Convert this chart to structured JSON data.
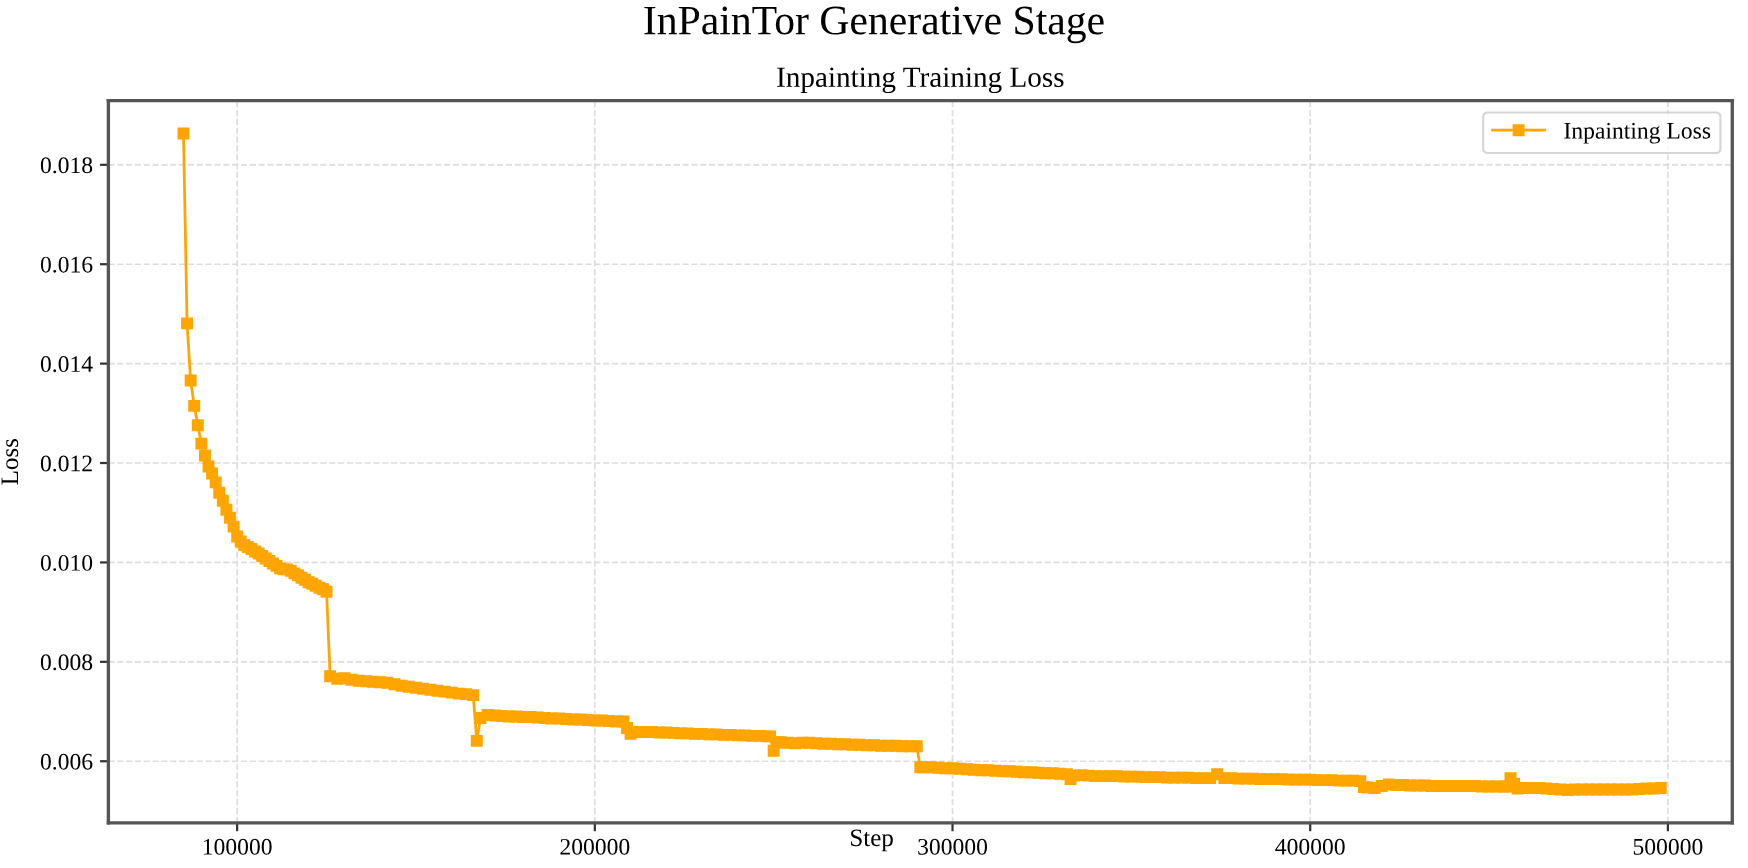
{
  "chart_data": {
    "type": "line",
    "title": "InPainTor Generative Stage",
    "subtitle": "Inpainting Training Loss",
    "xlabel": "Step",
    "ylabel": "Loss",
    "series": [
      {
        "name": "Inpainting Loss",
        "color": "#ffa500",
        "x": [
          85000,
          86000,
          87000,
          88000,
          89000,
          90000,
          91000,
          92000,
          93000,
          94000,
          95000,
          96000,
          97000,
          98000,
          99000,
          100000,
          101000,
          102000,
          103000,
          104000,
          105000,
          106000,
          107000,
          108000,
          109000,
          110000,
          111000,
          112000,
          113000,
          114000,
          115000,
          116000,
          117000,
          118000,
          119000,
          120000,
          121000,
          122000,
          123000,
          124000,
          125000,
          126000,
          128000,
          130000,
          132000,
          134000,
          136000,
          138000,
          140000,
          142000,
          144000,
          146000,
          148000,
          150000,
          152000,
          154000,
          156000,
          158000,
          160000,
          162000,
          164000,
          166000,
          167000,
          168000,
          170000,
          172000,
          174000,
          176000,
          178000,
          180000,
          182000,
          184000,
          186000,
          188000,
          190000,
          192000,
          194000,
          196000,
          198000,
          200000,
          202000,
          204000,
          206000,
          208000,
          209000,
          210000,
          212000,
          214000,
          216000,
          218000,
          220000,
          222000,
          224000,
          226000,
          228000,
          230000,
          232000,
          234000,
          236000,
          238000,
          240000,
          242000,
          244000,
          246000,
          248000,
          249000,
          250000,
          251000,
          252000,
          254000,
          256000,
          258000,
          260000,
          262000,
          264000,
          266000,
          268000,
          270000,
          272000,
          274000,
          276000,
          278000,
          280000,
          282000,
          284000,
          286000,
          288000,
          290000,
          291000,
          292000,
          294000,
          296000,
          298000,
          300000,
          302000,
          304000,
          306000,
          308000,
          310000,
          312000,
          314000,
          316000,
          318000,
          320000,
          322000,
          324000,
          326000,
          328000,
          330000,
          332000,
          333000,
          334000,
          336000,
          338000,
          340000,
          342000,
          344000,
          346000,
          348000,
          350000,
          352000,
          354000,
          356000,
          358000,
          360000,
          362000,
          364000,
          366000,
          368000,
          370000,
          372000,
          374000,
          376000,
          378000,
          380000,
          382000,
          384000,
          386000,
          388000,
          390000,
          392000,
          394000,
          396000,
          398000,
          400000,
          402000,
          404000,
          406000,
          408000,
          410000,
          412000,
          414000,
          415000,
          416000,
          418000,
          420000,
          422000,
          424000,
          426000,
          428000,
          430000,
          432000,
          434000,
          436000,
          438000,
          440000,
          442000,
          444000,
          446000,
          448000,
          450000,
          452000,
          454000,
          455000,
          456000,
          457000,
          458000,
          460000,
          462000,
          464000,
          466000,
          468000,
          470000,
          472000,
          474000,
          476000,
          478000,
          480000,
          482000,
          484000,
          486000,
          488000,
          490000,
          492000,
          494000,
          496000,
          498000
        ],
        "values": [
          0.01863,
          0.01481,
          0.01366,
          0.01315,
          0.01276,
          0.01239,
          0.01215,
          0.01193,
          0.01179,
          0.01161,
          0.0114,
          0.01124,
          0.01106,
          0.0109,
          0.01072,
          0.01052,
          0.01042,
          0.01035,
          0.01031,
          0.01027,
          0.01022,
          0.01018,
          0.01013,
          0.01008,
          0.01003,
          0.00998,
          0.00993,
          0.00988,
          0.00986,
          0.00986,
          0.00983,
          0.00978,
          0.00974,
          0.00969,
          0.00965,
          0.0096,
          0.00957,
          0.00953,
          0.00949,
          0.00946,
          0.00941,
          0.00771,
          0.00766,
          0.00767,
          0.00764,
          0.00762,
          0.00761,
          0.0076,
          0.00759,
          0.00758,
          0.00755,
          0.00752,
          0.0075,
          0.00748,
          0.00746,
          0.00744,
          0.00742,
          0.0074,
          0.00738,
          0.00736,
          0.00735,
          0.00733,
          0.00641,
          0.00687,
          0.00693,
          0.00692,
          0.00691,
          0.0069,
          0.0069,
          0.00689,
          0.00689,
          0.00688,
          0.00687,
          0.00686,
          0.00686,
          0.00685,
          0.00684,
          0.00684,
          0.00683,
          0.00682,
          0.00682,
          0.00681,
          0.0068,
          0.0068,
          0.00667,
          0.00655,
          0.00659,
          0.00659,
          0.00659,
          0.00658,
          0.00658,
          0.00657,
          0.00656,
          0.00656,
          0.00655,
          0.00655,
          0.00654,
          0.00654,
          0.00653,
          0.00653,
          0.00652,
          0.00652,
          0.00651,
          0.00651,
          0.0065,
          0.0065,
          0.00621,
          0.00638,
          0.00638,
          0.00637,
          0.00636,
          0.00637,
          0.00637,
          0.00636,
          0.00635,
          0.00635,
          0.00634,
          0.00634,
          0.00633,
          0.00633,
          0.00632,
          0.00632,
          0.00631,
          0.00631,
          0.00631,
          0.0063,
          0.0063,
          0.0063,
          0.00588,
          0.00588,
          0.00588,
          0.00587,
          0.00586,
          0.00586,
          0.00585,
          0.00584,
          0.00583,
          0.00582,
          0.00582,
          0.00581,
          0.0058,
          0.0058,
          0.00579,
          0.00578,
          0.00578,
          0.00577,
          0.00576,
          0.00576,
          0.00575,
          0.00574,
          0.00564,
          0.00571,
          0.00572,
          0.00571,
          0.0057,
          0.0057,
          0.0057,
          0.0057,
          0.00569,
          0.00569,
          0.00569,
          0.00568,
          0.00568,
          0.00568,
          0.00567,
          0.00567,
          0.00567,
          0.00567,
          0.00566,
          0.00566,
          0.00566,
          0.00574,
          0.00566,
          0.00566,
          0.00565,
          0.00565,
          0.00565,
          0.00564,
          0.00564,
          0.00564,
          0.00564,
          0.00563,
          0.00563,
          0.00563,
          0.00563,
          0.00562,
          0.00562,
          0.00562,
          0.00561,
          0.00561,
          0.00561,
          0.0056,
          0.00548,
          0.00547,
          0.00546,
          0.0055,
          0.00553,
          0.00552,
          0.00552,
          0.00551,
          0.00551,
          0.00551,
          0.0055,
          0.0055,
          0.0055,
          0.0055,
          0.0055,
          0.0055,
          0.0055,
          0.00549,
          0.00549,
          0.00549,
          0.00549,
          0.00549,
          0.00566,
          0.00555,
          0.00545,
          0.00546,
          0.00546,
          0.00546,
          0.00545,
          0.00544,
          0.00543,
          0.00542,
          0.00543,
          0.00543,
          0.00543,
          0.00543,
          0.00543,
          0.00543,
          0.00543,
          0.00543,
          0.00543,
          0.00544,
          0.00545,
          0.00545,
          0.00546
        ]
      }
    ],
    "xlim": [
      64000,
      518000
    ],
    "ylim": [
      0.00476,
      0.01929
    ],
    "xticks": [
      100000,
      200000,
      300000,
      400000,
      500000
    ],
    "yticks": [
      0.006,
      0.008,
      {
        "value": 0.01,
        "label": "0.010"
      },
      0.012,
      0.014,
      0.016,
      0.018
    ],
    "grid": true,
    "legend": "top right",
    "marker": "square",
    "line_style": "solid"
  }
}
